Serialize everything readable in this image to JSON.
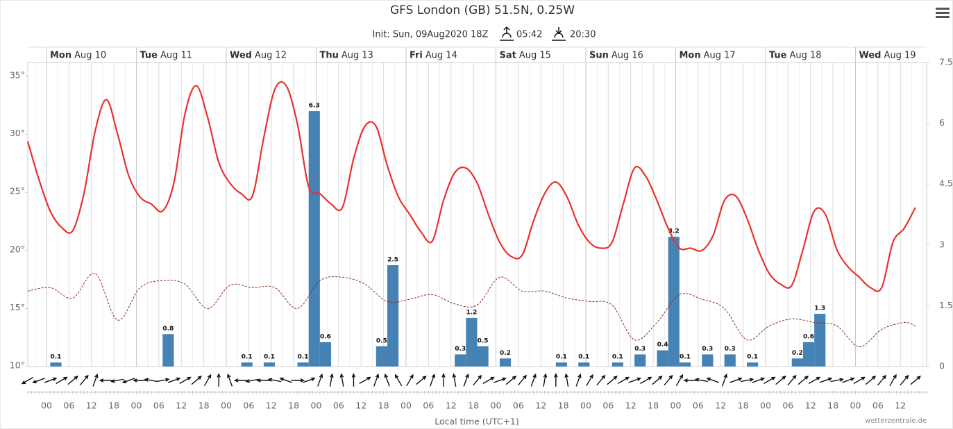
{
  "header": {
    "title": "GFS London (GB) 51.5N, 0.25W",
    "init": "Init: Sun, 09Aug2020 18Z",
    "sunrise": "05:42",
    "sunset": "20:30"
  },
  "chart_data": {
    "type": "meteogram",
    "x_label": "Local time (UTC+1)",
    "credit": "wetterzentrale.de",
    "xlim": [
      -5,
      235
    ],
    "xticks": [
      {
        "value": 0,
        "label": "00"
      },
      {
        "value": 6,
        "label": "06"
      },
      {
        "value": 12,
        "label": "12"
      },
      {
        "value": 18,
        "label": "18"
      },
      {
        "value": 24,
        "label": "00"
      },
      {
        "value": 30,
        "label": "06"
      },
      {
        "value": 36,
        "label": "12"
      },
      {
        "value": 42,
        "label": "18"
      },
      {
        "value": 48,
        "label": "00"
      },
      {
        "value": 54,
        "label": "06"
      },
      {
        "value": 60,
        "label": "12"
      },
      {
        "value": 66,
        "label": "18"
      },
      {
        "value": 72,
        "label": "00"
      },
      {
        "value": 78,
        "label": "06"
      },
      {
        "value": 84,
        "label": "12"
      },
      {
        "value": 90,
        "label": "18"
      },
      {
        "value": 96,
        "label": "00"
      },
      {
        "value": 102,
        "label": "06"
      },
      {
        "value": 108,
        "label": "12"
      },
      {
        "value": 114,
        "label": "18"
      },
      {
        "value": 120,
        "label": "00"
      },
      {
        "value": 126,
        "label": "06"
      },
      {
        "value": 132,
        "label": "12"
      },
      {
        "value": 138,
        "label": "18"
      },
      {
        "value": 144,
        "label": "00"
      },
      {
        "value": 150,
        "label": "06"
      },
      {
        "value": 156,
        "label": "12"
      },
      {
        "value": 162,
        "label": "18"
      },
      {
        "value": 168,
        "label": "00"
      },
      {
        "value": 174,
        "label": "06"
      },
      {
        "value": 180,
        "label": "12"
      },
      {
        "value": 186,
        "label": "18"
      },
      {
        "value": 192,
        "label": "00"
      },
      {
        "value": 198,
        "label": "06"
      },
      {
        "value": 204,
        "label": "12"
      },
      {
        "value": 210,
        "label": "18"
      },
      {
        "value": 216,
        "label": "00"
      },
      {
        "value": 222,
        "label": "06"
      },
      {
        "value": 228,
        "label": "12"
      }
    ],
    "days": [
      {
        "x": 0,
        "weekday": "Mon",
        "date": "Aug 10"
      },
      {
        "x": 24,
        "weekday": "Tue",
        "date": "Aug 11"
      },
      {
        "x": 48,
        "weekday": "Wed",
        "date": "Aug 12"
      },
      {
        "x": 72,
        "weekday": "Thu",
        "date": "Aug 13"
      },
      {
        "x": 96,
        "weekday": "Fri",
        "date": "Aug 14"
      },
      {
        "x": 120,
        "weekday": "Sat",
        "date": "Aug 15"
      },
      {
        "x": 144,
        "weekday": "Sun",
        "date": "Aug 16"
      },
      {
        "x": 168,
        "weekday": "Mon",
        "date": "Aug 17"
      },
      {
        "x": 192,
        "weekday": "Tue",
        "date": "Aug 18"
      },
      {
        "x": 216,
        "weekday": "Wed",
        "date": "Aug 19"
      }
    ],
    "ylim": [
      10,
      36.2
    ],
    "yticks": [
      {
        "value": 10,
        "label": "10°"
      },
      {
        "value": 15,
        "label": "15°"
      },
      {
        "value": 20,
        "label": "20°"
      },
      {
        "value": 25,
        "label": "25°"
      },
      {
        "value": 30,
        "label": "30°"
      },
      {
        "value": 35,
        "label": "35°"
      }
    ],
    "y2lim": [
      0,
      7.5
    ],
    "y2ticks": [
      0,
      1.5,
      3,
      4.5,
      6,
      7.5
    ],
    "temperature": {
      "color": "#e8302f",
      "x": [
        -5,
        -2,
        1,
        4,
        7,
        10,
        13,
        16,
        19,
        22,
        25,
        28,
        31,
        34,
        37,
        40,
        43,
        46,
        49,
        52,
        55,
        58,
        61,
        64,
        67,
        70,
        73,
        76,
        79,
        82,
        85,
        88,
        91,
        94,
        97,
        100,
        103,
        106,
        109,
        112,
        115,
        118,
        121,
        124,
        127,
        130,
        133,
        136,
        139,
        142,
        145,
        148,
        151,
        154,
        157,
        160,
        163,
        166,
        169,
        172,
        175,
        178,
        181,
        184,
        187,
        190,
        193,
        196,
        199,
        202,
        205,
        208,
        211,
        214,
        217,
        220,
        223,
        226,
        229,
        232
      ],
      "values": [
        29.4,
        26.1,
        23.4,
        22.0,
        21.7,
        24.9,
        30.3,
        33.0,
        30.0,
        26.4,
        24.6,
        24.0,
        23.4,
        25.8,
        31.8,
        34.2,
        31.5,
        27.6,
        25.8,
        24.9,
        24.7,
        29.7,
        33.9,
        34.2,
        30.9,
        25.5,
        24.9,
        24.0,
        23.7,
        27.9,
        30.7,
        30.7,
        27.3,
        24.6,
        23.1,
        21.6,
        20.8,
        24.3,
        26.7,
        27.1,
        25.8,
        23.1,
        20.7,
        19.5,
        19.6,
        22.5,
        24.9,
        25.9,
        24.6,
        22.2,
        20.7,
        20.2,
        20.7,
        24.0,
        27.1,
        26.4,
        24.3,
        21.9,
        20.2,
        20.2,
        20.0,
        21.3,
        24.3,
        24.7,
        22.8,
        20.1,
        18.0,
        17.1,
        17.0,
        20.1,
        23.4,
        23.1,
        20.1,
        18.6,
        17.7,
        16.8,
        16.8,
        20.7,
        21.9,
        23.7
      ]
    },
    "dewpoint": {
      "color": "#8b2a1a",
      "x": [
        -5,
        1,
        7,
        13,
        19,
        25,
        31,
        37,
        43,
        49,
        55,
        61,
        67,
        73,
        79,
        85,
        91,
        97,
        103,
        109,
        115,
        121,
        127,
        133,
        139,
        145,
        151,
        157,
        163,
        169,
        175,
        181,
        187,
        193,
        199,
        205,
        211,
        217,
        223,
        229,
        232
      ],
      "values": [
        16.5,
        16.8,
        15.9,
        18.0,
        14.0,
        16.8,
        17.4,
        17.1,
        15.0,
        17.0,
        16.8,
        16.8,
        15.0,
        17.4,
        17.7,
        17.1,
        15.6,
        15.8,
        16.2,
        15.4,
        15.3,
        17.7,
        16.5,
        16.5,
        15.9,
        15.6,
        15.3,
        12.3,
        13.8,
        16.2,
        15.8,
        15.0,
        12.3,
        13.5,
        14.1,
        13.8,
        13.5,
        11.7,
        13.2,
        13.8,
        13.5
      ]
    },
    "precipitation": {
      "color": "#4682b4",
      "axis": "y2",
      "x": [
        1,
        31,
        52,
        58,
        67,
        70,
        73,
        88,
        91,
        109,
        112,
        115,
        121,
        136,
        142,
        151,
        157,
        163,
        166,
        169,
        175,
        181,
        187,
        199,
        202,
        205
      ],
      "values": [
        0.1,
        0.8,
        0.1,
        0.1,
        0.1,
        6.3,
        0.6,
        0.5,
        2.5,
        0.3,
        1.2,
        0.5,
        0.2,
        0.1,
        0.1,
        0.1,
        0.3,
        0.4,
        3.2,
        0.1,
        0.3,
        0.3,
        0.1,
        0.2,
        0.6,
        1.3
      ]
    },
    "wind_direction": [
      60,
      70,
      250,
      240,
      230,
      220,
      200,
      90,
      80,
      70,
      90,
      100,
      260,
      250,
      240,
      230,
      210,
      180,
      160,
      90,
      80,
      90,
      100,
      110,
      270,
      250,
      200,
      190,
      170,
      180,
      240,
      200,
      160,
      150,
      210,
      230,
      200,
      180,
      170,
      200,
      220,
      240,
      250,
      230,
      220,
      200,
      190,
      180,
      170,
      200,
      210,
      220,
      230,
      240,
      250,
      240,
      230,
      220,
      210,
      90,
      100,
      110,
      200,
      250,
      260,
      250,
      240,
      230,
      220,
      230,
      240,
      250,
      260,
      250,
      240,
      230,
      220,
      210,
      220,
      230
    ]
  }
}
